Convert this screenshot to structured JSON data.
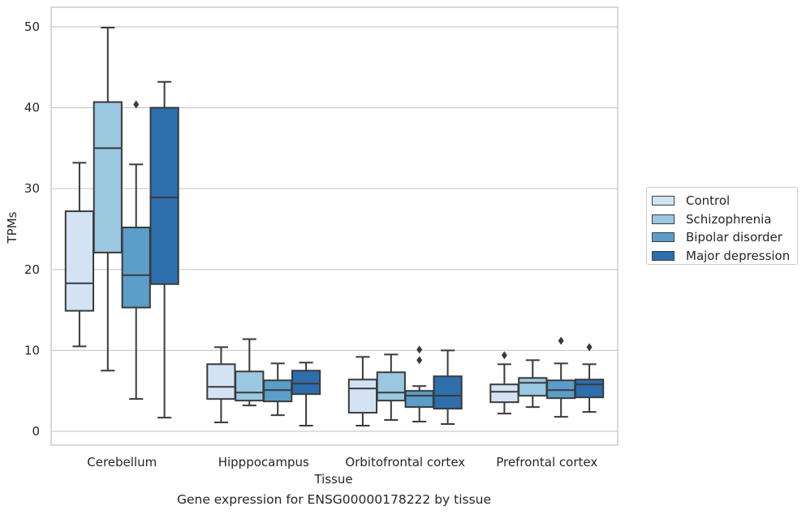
{
  "chart_data": {
    "type": "box",
    "caption": "Gene expression for ENSG00000178222 by tissue",
    "xlabel": "Tissue",
    "ylabel": "TPMs",
    "ylim": [
      -1.5,
      52.5
    ],
    "yticks": [
      0,
      10,
      20,
      30,
      40,
      50
    ],
    "grid": "horizontal",
    "legend_position": "right",
    "categories": [
      "Cerebellum",
      "Hipppocampus",
      "Orbitofrontal cortex",
      "Prefrontal cortex"
    ],
    "series": [
      {
        "name": "Control",
        "color": "#d3e3f3",
        "boxes": [
          {
            "whisker_low": 10.5,
            "q1": 14.9,
            "median": 18.3,
            "q3": 27.2,
            "whisker_high": 33.2,
            "outliers": []
          },
          {
            "whisker_low": 1.1,
            "q1": 4.0,
            "median": 5.5,
            "q3": 8.3,
            "whisker_high": 10.4,
            "outliers": []
          },
          {
            "whisker_low": 0.7,
            "q1": 2.3,
            "median": 5.3,
            "q3": 6.4,
            "whisker_high": 9.2,
            "outliers": []
          },
          {
            "whisker_low": 2.2,
            "q1": 3.6,
            "median": 4.9,
            "q3": 5.8,
            "whisker_high": 8.3,
            "outliers": [
              9.4
            ]
          }
        ]
      },
      {
        "name": "Schizophrenia",
        "color": "#9ac8e0",
        "boxes": [
          {
            "whisker_low": 7.5,
            "q1": 22.1,
            "median": 35.0,
            "q3": 40.7,
            "whisker_high": 49.9,
            "outliers": []
          },
          {
            "whisker_low": 3.2,
            "q1": 3.8,
            "median": 4.8,
            "q3": 7.4,
            "whisker_high": 11.4,
            "outliers": []
          },
          {
            "whisker_low": 1.4,
            "q1": 3.8,
            "median": 4.8,
            "q3": 7.3,
            "whisker_high": 9.5,
            "outliers": []
          },
          {
            "whisker_low": 3.0,
            "q1": 4.4,
            "median": 6.0,
            "q3": 6.6,
            "whisker_high": 8.8,
            "outliers": []
          }
        ]
      },
      {
        "name": "Bipolar disorder",
        "color": "#5a9ec9",
        "boxes": [
          {
            "whisker_low": 4.0,
            "q1": 15.3,
            "median": 19.3,
            "q3": 25.2,
            "whisker_high": 33.0,
            "outliers": [
              40.4
            ]
          },
          {
            "whisker_low": 2.0,
            "q1": 3.7,
            "median": 5.1,
            "q3": 6.3,
            "whisker_high": 8.4,
            "outliers": []
          },
          {
            "whisker_low": 1.2,
            "q1": 3.0,
            "median": 4.4,
            "q3": 5.0,
            "whisker_high": 5.6,
            "outliers": [
              8.8,
              10.1
            ]
          },
          {
            "whisker_low": 1.8,
            "q1": 4.1,
            "median": 5.1,
            "q3": 6.3,
            "whisker_high": 8.4,
            "outliers": [
              11.2
            ]
          }
        ]
      },
      {
        "name": "Major depression",
        "color": "#2d6ead",
        "boxes": [
          {
            "whisker_low": 1.7,
            "q1": 18.2,
            "median": 28.9,
            "q3": 40.0,
            "whisker_high": 43.2,
            "outliers": []
          },
          {
            "whisker_low": 0.7,
            "q1": 4.6,
            "median": 5.9,
            "q3": 7.5,
            "whisker_high": 8.5,
            "outliers": []
          },
          {
            "whisker_low": 0.9,
            "q1": 2.8,
            "median": 4.4,
            "q3": 6.8,
            "whisker_high": 10.0,
            "outliers": []
          },
          {
            "whisker_low": 2.4,
            "q1": 4.2,
            "median": 5.8,
            "q3": 6.4,
            "whisker_high": 8.3,
            "outliers": [
              10.4
            ]
          }
        ]
      }
    ]
  }
}
